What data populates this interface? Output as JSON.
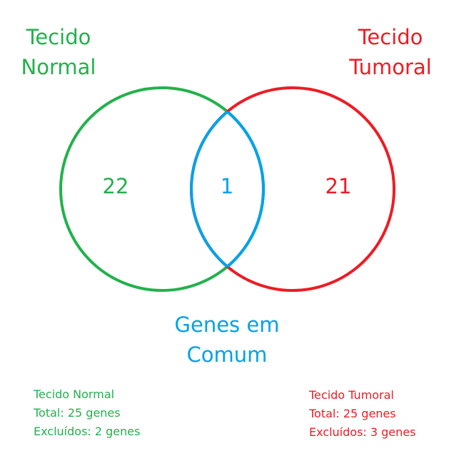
{
  "colors": {
    "normal": "#22b14c",
    "tumoral": "#ed1c24",
    "common": "#00a2e8"
  },
  "sets": {
    "normal": {
      "title_line1": "Tecido",
      "title_line2": "Normal",
      "exclusive_count": "22"
    },
    "tumoral": {
      "title_line1": "Tecido",
      "title_line2": "Tumoral",
      "exclusive_count": "21"
    },
    "common": {
      "title_line1": "Genes em",
      "title_line2": "Comum",
      "count": "1"
    }
  },
  "summary": {
    "normal": {
      "title": "Tecido Normal",
      "total": "Total: 25 genes",
      "excluded": "Excluídos: 2 genes"
    },
    "tumoral": {
      "title": "Tecido Tumoral",
      "total": "Total: 25 genes",
      "excluded": "Excluídos: 3 genes"
    }
  }
}
